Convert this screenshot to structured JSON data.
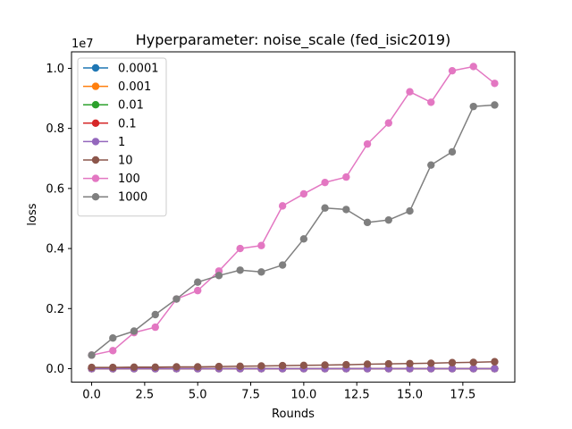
{
  "chart_data": {
    "type": "line",
    "title": "Hyperparameter: noise_scale (fed_isic2019)",
    "xlabel": "Rounds",
    "ylabel": "loss",
    "y_offset_label": "1e7",
    "y_scale": 10000000,
    "xlim": [
      -0.95,
      19.95
    ],
    "ylim": [
      -450000,
      10550000
    ],
    "x_ticks": [
      0.0,
      2.5,
      5.0,
      7.5,
      10.0,
      12.5,
      15.0,
      17.5
    ],
    "x_tick_labels": [
      "0.0",
      "2.5",
      "5.0",
      "7.5",
      "10.0",
      "12.5",
      "15.0",
      "17.5"
    ],
    "y_ticks": [
      0,
      2000000,
      4000000,
      6000000,
      8000000,
      10000000
    ],
    "y_tick_labels": [
      "0.0",
      "0.2",
      "0.4",
      "0.6",
      "0.8",
      "1.0"
    ],
    "grid": false,
    "legend_position": "top-left",
    "x": [
      0,
      1,
      2,
      3,
      4,
      5,
      6,
      7,
      8,
      9,
      10,
      11,
      12,
      13,
      14,
      15,
      16,
      17,
      18,
      19
    ],
    "series": [
      {
        "name": "0.0001",
        "color": "#1f77b4",
        "values": [
          0,
          0,
          0,
          0,
          0,
          0,
          0,
          0,
          0,
          0,
          0,
          0,
          0,
          0,
          0,
          0,
          0,
          0,
          0,
          0
        ]
      },
      {
        "name": "0.001",
        "color": "#ff7f0e",
        "values": [
          0,
          0,
          0,
          0,
          0,
          0,
          0,
          0,
          0,
          0,
          0,
          0,
          0,
          0,
          0,
          0,
          0,
          0,
          0,
          0
        ]
      },
      {
        "name": "0.01",
        "color": "#2ca02c",
        "values": [
          0,
          0,
          0,
          0,
          0,
          0,
          0,
          0,
          0,
          0,
          0,
          0,
          0,
          0,
          0,
          0,
          0,
          0,
          0,
          0
        ]
      },
      {
        "name": "0.1",
        "color": "#d62728",
        "values": [
          0,
          0,
          0,
          0,
          0,
          0,
          0,
          0,
          0,
          0,
          0,
          0,
          0,
          0,
          0,
          0,
          0,
          0,
          0,
          0
        ]
      },
      {
        "name": "1",
        "color": "#9467bd",
        "values": [
          0,
          0,
          0,
          0,
          0,
          0,
          0,
          0,
          0,
          0,
          0,
          0,
          0,
          0,
          0,
          0,
          0,
          0,
          0,
          0
        ]
      },
      {
        "name": "10",
        "color": "#8c564b",
        "values": [
          40000,
          40000,
          50000,
          50000,
          60000,
          60000,
          70000,
          80000,
          90000,
          100000,
          110000,
          120000,
          130000,
          150000,
          160000,
          170000,
          180000,
          200000,
          210000,
          230000
        ]
      },
      {
        "name": "100",
        "color": "#e377c2",
        "values": [
          450000,
          600000,
          1200000,
          1380000,
          2320000,
          2600000,
          3250000,
          4000000,
          4100000,
          5420000,
          5820000,
          6200000,
          6380000,
          7480000,
          8180000,
          9220000,
          8870000,
          9920000,
          10060000,
          9500000
        ]
      },
      {
        "name": "1000",
        "color": "#7f7f7f",
        "values": [
          450000,
          1020000,
          1250000,
          1800000,
          2320000,
          2880000,
          3100000,
          3280000,
          3220000,
          3450000,
          4320000,
          5350000,
          5300000,
          4870000,
          4950000,
          5250000,
          6780000,
          7220000,
          8730000,
          8780000
        ]
      }
    ]
  }
}
